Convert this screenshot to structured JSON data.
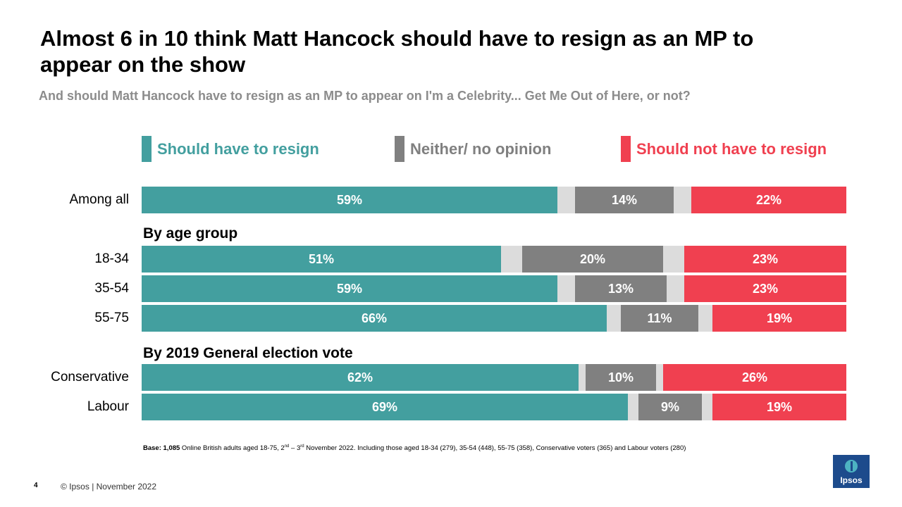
{
  "header": {
    "title": "Almost 6 in 10 think Matt Hancock should have to resign as an MP to appear on the show",
    "subtitle": "And should Matt Hancock have to resign as an MP to appear on I'm a Celebrity... Get Me Out of Here, or not?"
  },
  "chart_data": {
    "type": "bar",
    "orientation": "horizontal-stacked",
    "title": "Almost 6 in 10 think Matt Hancock should have to resign as an MP to appear on the show",
    "subtitle": "And should Matt Hancock have to resign as an MP to appear on I'm a Celebrity... Get Me Out of Here, or not?",
    "legend_placement": "top",
    "colors": {
      "resign": "#439f9f",
      "neither": "#808080",
      "not": "#f04050",
      "gap": "#dcdcdc"
    },
    "legend": [
      {
        "key": "resign",
        "label": "Should have to resign"
      },
      {
        "key": "neither",
        "label": "Neither/ no opinion"
      },
      {
        "key": "not",
        "label": "Should not have to resign"
      }
    ],
    "sections": [
      "By age group",
      "By 2019 General election vote"
    ],
    "categories": [
      "Among all",
      "18-34",
      "35-54",
      "55-75",
      "Conservative",
      "Labour"
    ],
    "series": [
      {
        "name": "Should have to resign",
        "values": [
          59,
          51,
          59,
          66,
          62,
          69
        ],
        "labels": [
          "59%",
          "51%",
          "59%",
          "66%",
          "62%",
          "69%"
        ]
      },
      {
        "name": "Neither/ no opinion",
        "values": [
          14,
          20,
          13,
          11,
          10,
          9
        ],
        "labels": [
          "14%",
          "20%",
          "13%",
          "11%",
          "10%",
          "9%"
        ]
      },
      {
        "name": "Should not have to resign",
        "values": [
          22,
          23,
          23,
          19,
          26,
          19
        ],
        "labels": [
          "22%",
          "23%",
          "23%",
          "19%",
          "26%",
          "19%"
        ]
      }
    ],
    "xlim": [
      0,
      100
    ]
  },
  "footer": {
    "base_label": "Base:",
    "base_count": "1,085",
    "base_text_1": " Online British adults aged 18-75, 2",
    "sup_1": "nd",
    "base_text_2": " – 3",
    "sup_2": "rd",
    "base_text_3": " November 2022. Including those aged 18-34 (279), 35-54 (448), 55-75 (358), Conservative voters (365) and Labour voters (280)",
    "page_number": "4",
    "copyright": "© Ipsos | November  2022",
    "logo_text": "Ipsos"
  }
}
